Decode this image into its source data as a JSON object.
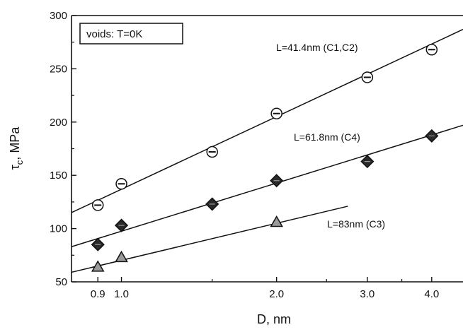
{
  "chart_data": {
    "type": "scatter",
    "x_scale": "log",
    "xlabel": "D, nm",
    "ylabel_main": "τ",
    "ylabel_sub": "c",
    "ylabel_rest": ", MPa",
    "xlim": [
      0.8,
      4.6
    ],
    "ylim": [
      50,
      300
    ],
    "x_ticks": [
      0.9,
      1.0,
      2.0,
      3.0,
      4.0
    ],
    "x_tick_labels": [
      "0.9",
      "1.0",
      "2.0",
      "3.0",
      "4.0"
    ],
    "y_ticks": [
      50,
      100,
      150,
      200,
      250,
      300
    ],
    "y_tick_labels": [
      "50",
      "100",
      "150",
      "200",
      "250",
      "300"
    ],
    "grid": false,
    "legend_box": {
      "text": "voids: T=0K",
      "placement": "top-left"
    },
    "series": [
      {
        "name": "L=41.4nm (C1,C2)",
        "marker": "circle",
        "x": [
          0.9,
          1.0,
          1.5,
          2.0,
          3.0,
          4.0
        ],
        "y": [
          122,
          142,
          172,
          208,
          242,
          268
        ],
        "fit": {
          "x": [
            0.8,
            4.6
          ],
          "y": [
            115,
            287
          ]
        }
      },
      {
        "name": "L=61.8nm (C4)",
        "marker": "diamond",
        "x": [
          0.9,
          1.0,
          1.5,
          2.0,
          3.0,
          4.0
        ],
        "y": [
          85,
          103,
          123,
          145,
          163,
          187
        ],
        "fit": {
          "x": [
            0.8,
            4.6
          ],
          "y": [
            83,
            197
          ]
        }
      },
      {
        "name": "L=83nm (C3)",
        "marker": "triangle",
        "x": [
          0.9,
          1.0,
          2.0
        ],
        "y": [
          64,
          73,
          106
        ],
        "fit": {
          "x": [
            0.8,
            2.75
          ],
          "y": [
            59,
            121
          ]
        }
      }
    ]
  }
}
